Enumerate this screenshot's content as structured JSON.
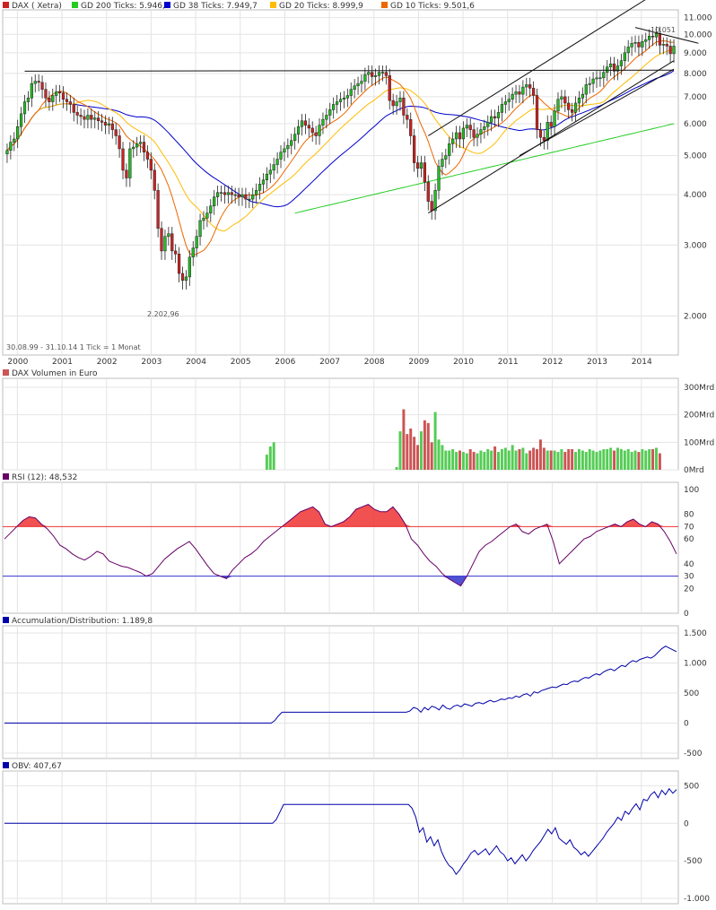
{
  "colors": {
    "up": "#22bb22",
    "down": "#cc2222",
    "gd200": "#22cc22",
    "gd38": "#0000cc",
    "gd20": "#ffbb00",
    "gd10": "#ee6600",
    "rsi": "#660066",
    "rsi_over": "#ee3333",
    "rsi_under": "#3333cc",
    "ad": "#0000aa",
    "obv": "#0000aa",
    "vol_up": "#55cc55",
    "vol_down": "#cc5555"
  },
  "chart_data": [
    {
      "type": "candlestick",
      "title": "DAX ( Xetra)",
      "legend": [
        {
          "label": "GD 200 Ticks: 5.946,9",
          "color": "#22cc22"
        },
        {
          "label": "GD 38 Ticks: 7.949,7",
          "color": "#0000cc"
        },
        {
          "label": "GD 20 Ticks: 8.999,9",
          "color": "#ffbb00"
        },
        {
          "label": "GD 10 Ticks: 9.501,6",
          "color": "#ee6600"
        }
      ],
      "x_ticks": [
        "2000",
        "2001",
        "2002",
        "2003",
        "2004",
        "2005",
        "2006",
        "2007",
        "2008",
        "2009",
        "2010",
        "2011",
        "2012",
        "2013",
        "2014"
      ],
      "x_range": [
        1999.67,
        2014.83
      ],
      "y_scale": "log",
      "y_ticks": [
        {
          "v": 2000,
          "t": "2.000"
        },
        {
          "v": 3000,
          "t": "3.000"
        },
        {
          "v": 4000,
          "t": "4.000"
        },
        {
          "v": 5000,
          "t": "5.000"
        },
        {
          "v": 6000,
          "t": "6.000"
        },
        {
          "v": 7000,
          "t": "7.000"
        },
        {
          "v": 8000,
          "t": "8.000"
        },
        {
          "v": 9000,
          "t": "9.000"
        },
        {
          "v": 10000,
          "t": "10.000"
        },
        {
          "v": 11000,
          "t": "11.000"
        }
      ],
      "y_range": [
        1600,
        11500
      ],
      "annotations": [
        {
          "text": "2.202,96"
        },
        {
          "text": "10.051"
        },
        {
          "text": "30.08.99 - 31.10.14   1 Tick = 1 Monat"
        }
      ],
      "closes": [
        5150,
        5400,
        5500,
        5900,
        6350,
        6800,
        6950,
        7550,
        7650,
        7600,
        7300,
        6950,
        6800,
        7050,
        7200,
        7150,
        6900,
        6800,
        6700,
        6400,
        6300,
        6250,
        6150,
        6300,
        6150,
        6200,
        6100,
        6050,
        5950,
        6000,
        5800,
        5600,
        5200,
        4600,
        4400,
        5200,
        5250,
        5350,
        5400,
        5100,
        4900,
        4600,
        4100,
        3300,
        2900,
        3150,
        3200,
        2900,
        2850,
        2550,
        2450,
        2500,
        2800,
        2950,
        3150,
        3450,
        3500,
        3600,
        3750,
        3950,
        4050,
        4050,
        4000,
        4050,
        4000,
        4000,
        3950,
        4000,
        3900,
        3900,
        4000,
        4100,
        4250,
        4350,
        4500,
        4600,
        4750,
        4900,
        5100,
        5200,
        5300,
        5450,
        5650,
        5900,
        6100,
        5950,
        5850,
        5700,
        5600,
        5950,
        6150,
        6300,
        6500,
        6700,
        6800,
        6900,
        6950,
        7050,
        7300,
        7450,
        7550,
        7650,
        7950,
        8050,
        7850,
        7900,
        8050,
        8050,
        7900,
        6850,
        6650,
        6800,
        6950,
        6300,
        6150,
        5600,
        4800,
        4650,
        4800,
        4300,
        3850,
        3650,
        4100,
        4700,
        4900,
        5000,
        5350,
        5500,
        5700,
        5500,
        5850,
        5950,
        5800,
        5550,
        5650,
        5800,
        5900,
        6050,
        6250,
        6200,
        6400,
        6700,
        6800,
        6900,
        7100,
        7200,
        7100,
        7400,
        7500,
        7350,
        7050,
        5800,
        5550,
        5450,
        6050,
        5900,
        6450,
        6900,
        7000,
        6750,
        6500,
        6400,
        6750,
        6950,
        7100,
        7500,
        7550,
        7750,
        7800,
        7800,
        8050,
        8300,
        8450,
        8100,
        8350,
        8600,
        9000,
        9300,
        9500,
        9550,
        9300,
        9600,
        9700,
        9900,
        9850,
        10050,
        9400,
        9450,
        9350,
        8950,
        9350
      ]
    },
    {
      "type": "bar",
      "title": "DAX Volumen in Euro",
      "y_ticks": [
        {
          "v": 0,
          "t": "0Mrd"
        },
        {
          "v": 100,
          "t": "100Mrd"
        },
        {
          "v": 200,
          "t": "200Mrd"
        },
        {
          "v": 300,
          "t": "300Mrd"
        }
      ],
      "y_range": [
        0,
        300
      ],
      "start_index": 74,
      "values": [
        55,
        85,
        100,
        0,
        0,
        0,
        0,
        0,
        0,
        0,
        0,
        0,
        0,
        0,
        0,
        0,
        0,
        0,
        0,
        0,
        0,
        0,
        0,
        0,
        0,
        0,
        0,
        0,
        0,
        0,
        0,
        0,
        0,
        0,
        0,
        0,
        0,
        10,
        140,
        220,
        130,
        150,
        120,
        90,
        140,
        180,
        170,
        100,
        210,
        110,
        90,
        70,
        70,
        75,
        65,
        70,
        65,
        60,
        75,
        65,
        60,
        70,
        65,
        75,
        70,
        85,
        65,
        75,
        80,
        70,
        90,
        70,
        75,
        80,
        60,
        70,
        80,
        75,
        110,
        80,
        70,
        70,
        70,
        65,
        75,
        65,
        75,
        75,
        65,
        75,
        70,
        65,
        75,
        70,
        65,
        70,
        75,
        75,
        80,
        70,
        80,
        75,
        70,
        75,
        65,
        70,
        65,
        75,
        70,
        75,
        75,
        80,
        60
      ]
    },
    {
      "type": "line",
      "title": "RSI (12): 48,532",
      "y_ticks": [
        {
          "v": 0,
          "t": "0"
        },
        {
          "v": 20,
          "t": "20"
        },
        {
          "v": 30,
          "t": "30"
        },
        {
          "v": 40,
          "t": "40"
        },
        {
          "v": 60,
          "t": "60"
        },
        {
          "v": 70,
          "t": "70"
        },
        {
          "v": 80,
          "t": "80"
        },
        {
          "v": 100,
          "t": "100"
        }
      ],
      "y_range": [
        0,
        100
      ],
      "levels": [
        70,
        30
      ],
      "values": [
        60,
        65,
        70,
        75,
        78,
        77,
        72,
        68,
        62,
        55,
        52,
        48,
        45,
        43,
        46,
        50,
        48,
        42,
        40,
        38,
        37,
        35,
        33,
        30,
        32,
        38,
        44,
        48,
        52,
        55,
        58,
        52,
        45,
        38,
        32,
        30,
        28,
        35,
        40,
        45,
        48,
        52,
        58,
        62,
        66,
        70,
        74,
        78,
        82,
        84,
        86,
        82,
        72,
        70,
        72,
        74,
        78,
        84,
        86,
        88,
        84,
        82,
        82,
        86,
        80,
        72,
        60,
        55,
        48,
        42,
        38,
        32,
        28,
        25,
        22,
        30,
        40,
        50,
        55,
        58,
        62,
        66,
        70,
        72,
        66,
        64,
        68,
        70,
        72,
        58,
        40,
        45,
        50,
        55,
        60,
        62,
        66,
        68,
        70,
        72,
        70,
        74,
        76,
        72,
        70,
        74,
        72,
        66,
        58,
        48
      ]
    },
    {
      "type": "line",
      "title": "Accumulation/Distribution: 1.189,8",
      "y_ticks": [
        {
          "v": -500,
          "t": "-500"
        },
        {
          "v": 0,
          "t": "0"
        },
        {
          "v": 500,
          "t": "500"
        },
        {
          "v": 1000,
          "t": "1.000"
        },
        {
          "v": 1500,
          "t": "1.500"
        }
      ],
      "y_range": [
        -500,
        1500
      ],
      "values": [
        0,
        0,
        0,
        0,
        0,
        0,
        0,
        0,
        0,
        0,
        0,
        0,
        0,
        0,
        0,
        0,
        0,
        0,
        0,
        0,
        0,
        0,
        0,
        0,
        0,
        0,
        0,
        0,
        0,
        0,
        0,
        0,
        0,
        0,
        0,
        0,
        0,
        0,
        0,
        0,
        0,
        0,
        0,
        0,
        0,
        0,
        0,
        0,
        0,
        0,
        0,
        0,
        0,
        0,
        0,
        0,
        0,
        0,
        0,
        0,
        0,
        0,
        0,
        0,
        0,
        0,
        0,
        0,
        0,
        0,
        0,
        0,
        0,
        0,
        40,
        120,
        180,
        180,
        180,
        180,
        180,
        180,
        180,
        180,
        180,
        180,
        180,
        180,
        180,
        180,
        180,
        180,
        180,
        180,
        180,
        180,
        180,
        180,
        180,
        180,
        180,
        180,
        180,
        180,
        180,
        180,
        180,
        180,
        180,
        180,
        180,
        200,
        260,
        240,
        180,
        260,
        220,
        280,
        260,
        220,
        300,
        250,
        230,
        280,
        300,
        270,
        320,
        300,
        280,
        330,
        340,
        320,
        350,
        380,
        350,
        370,
        400,
        390,
        420,
        410,
        450,
        430,
        470,
        490,
        450,
        520,
        500,
        540,
        560,
        580,
        600,
        590,
        620,
        650,
        640,
        680,
        700,
        690,
        730,
        760,
        750,
        790,
        820,
        800,
        850,
        880,
        900,
        870,
        920,
        960,
        940,
        1000,
        1040,
        1020,
        1060,
        1080,
        1100,
        1080,
        1120,
        1180,
        1240,
        1280,
        1250,
        1220,
        1190
      ]
    },
    {
      "type": "line",
      "title": "OBV: 407,67",
      "y_ticks": [
        {
          "v": -1000,
          "t": "-1.000"
        },
        {
          "v": -500,
          "t": "-500"
        },
        {
          "v": 0,
          "t": "0"
        },
        {
          "v": 500,
          "t": "500"
        }
      ],
      "y_range": [
        -1000,
        600
      ],
      "values": [
        0,
        0,
        0,
        0,
        0,
        0,
        0,
        0,
        0,
        0,
        0,
        0,
        0,
        0,
        0,
        0,
        0,
        0,
        0,
        0,
        0,
        0,
        0,
        0,
        0,
        0,
        0,
        0,
        0,
        0,
        0,
        0,
        0,
        0,
        0,
        0,
        0,
        0,
        0,
        0,
        0,
        0,
        0,
        0,
        0,
        0,
        0,
        0,
        0,
        0,
        0,
        0,
        0,
        0,
        0,
        0,
        0,
        0,
        0,
        0,
        0,
        0,
        0,
        0,
        0,
        0,
        0,
        0,
        0,
        0,
        0,
        0,
        0,
        0,
        50,
        150,
        250,
        250,
        250,
        250,
        250,
        250,
        250,
        250,
        250,
        250,
        250,
        250,
        250,
        250,
        250,
        250,
        250,
        250,
        250,
        250,
        250,
        250,
        250,
        250,
        250,
        250,
        250,
        250,
        250,
        250,
        250,
        250,
        250,
        250,
        250,
        200,
        80,
        -120,
        -60,
        -250,
        -180,
        -300,
        -220,
        -380,
        -480,
        -560,
        -600,
        -680,
        -620,
        -540,
        -480,
        -400,
        -360,
        -420,
        -380,
        -340,
        -420,
        -360,
        -300,
        -380,
        -420,
        -500,
        -460,
        -540,
        -480,
        -420,
        -500,
        -440,
        -360,
        -300,
        -240,
        -160,
        -80,
        -140,
        -60,
        -200,
        -240,
        -280,
        -220,
        -320,
        -360,
        -420,
        -380,
        -440,
        -380,
        -320,
        -260,
        -200,
        -120,
        -60,
        0,
        80,
        40,
        160,
        120,
        200,
        260,
        180,
        320,
        300,
        380,
        420,
        340,
        440,
        380,
        460,
        400,
        450
      ]
    }
  ]
}
